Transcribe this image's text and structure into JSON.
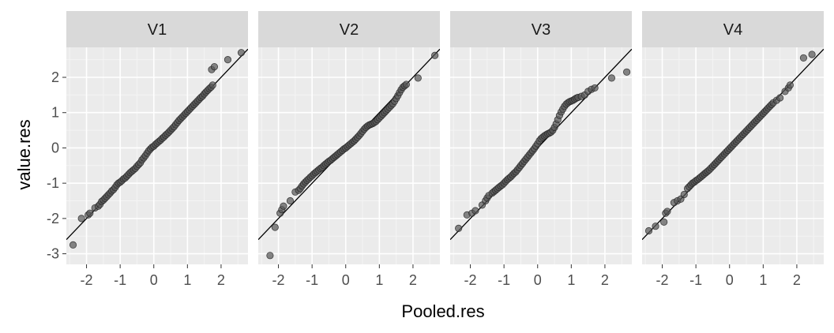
{
  "chart_data": {
    "type": "scatter",
    "subtype": "faceted-qq-plot",
    "xlabel": "Pooled.res",
    "ylabel": "value.res",
    "xlim": [
      -2.6,
      2.8
    ],
    "ylim": [
      -3.3,
      2.85
    ],
    "x_ticks": [
      -2,
      -1,
      0,
      1,
      2
    ],
    "y_ticks": [
      -3,
      -2,
      -1,
      0,
      1,
      2
    ],
    "x_tick_labels": [
      "-2",
      "-1",
      "0",
      "1",
      "2"
    ],
    "y_tick_labels": [
      "-3",
      "-2",
      "-1",
      "0",
      "1",
      "2"
    ],
    "grid": true,
    "shared_axes": true,
    "reference_line": {
      "slope": 1,
      "intercept": 0
    },
    "colors": {
      "panel_background": "#ebebeb",
      "strip_background": "#d9d9d9",
      "grid_major": "#ffffff",
      "grid_minor": "#f4f4f4",
      "point_fill": "#555555",
      "point_stroke": "#222222",
      "reference_line": "#000000"
    },
    "facets": [
      {
        "label": "V1",
        "points": [
          [
            -2.4,
            -2.75
          ],
          [
            -2.15,
            -2.0
          ],
          [
            -1.95,
            -1.9
          ],
          [
            -1.9,
            -1.85
          ],
          [
            -1.75,
            -1.7
          ],
          [
            -1.65,
            -1.65
          ],
          [
            -1.6,
            -1.6
          ],
          [
            -1.55,
            -1.52
          ],
          [
            -1.5,
            -1.48
          ],
          [
            -1.45,
            -1.43
          ],
          [
            -1.4,
            -1.38
          ],
          [
            -1.35,
            -1.33
          ],
          [
            -1.3,
            -1.28
          ],
          [
            -1.25,
            -1.22
          ],
          [
            -1.2,
            -1.18
          ],
          [
            -1.15,
            -1.12
          ],
          [
            -1.1,
            -1.05
          ],
          [
            -1.05,
            -1.0
          ],
          [
            -1.0,
            -0.97
          ],
          [
            -0.95,
            -0.93
          ],
          [
            -0.9,
            -0.88
          ],
          [
            -0.85,
            -0.85
          ],
          [
            -0.8,
            -0.8
          ],
          [
            -0.75,
            -0.75
          ],
          [
            -0.7,
            -0.7
          ],
          [
            -0.65,
            -0.66
          ],
          [
            -0.6,
            -0.62
          ],
          [
            -0.55,
            -0.58
          ],
          [
            -0.5,
            -0.52
          ],
          [
            -0.45,
            -0.47
          ],
          [
            -0.4,
            -0.42
          ],
          [
            -0.35,
            -0.34
          ],
          [
            -0.3,
            -0.28
          ],
          [
            -0.25,
            -0.22
          ],
          [
            -0.2,
            -0.15
          ],
          [
            -0.15,
            -0.08
          ],
          [
            -0.1,
            -0.03
          ],
          [
            -0.05,
            0.02
          ],
          [
            0.0,
            0.05
          ],
          [
            0.05,
            0.1
          ],
          [
            0.1,
            0.14
          ],
          [
            0.15,
            0.18
          ],
          [
            0.2,
            0.22
          ],
          [
            0.25,
            0.27
          ],
          [
            0.3,
            0.31
          ],
          [
            0.35,
            0.36
          ],
          [
            0.4,
            0.4
          ],
          [
            0.45,
            0.45
          ],
          [
            0.5,
            0.5
          ],
          [
            0.55,
            0.55
          ],
          [
            0.6,
            0.6
          ],
          [
            0.65,
            0.66
          ],
          [
            0.7,
            0.72
          ],
          [
            0.75,
            0.78
          ],
          [
            0.8,
            0.83
          ],
          [
            0.85,
            0.88
          ],
          [
            0.9,
            0.93
          ],
          [
            0.95,
            0.98
          ],
          [
            1.0,
            1.03
          ],
          [
            1.05,
            1.08
          ],
          [
            1.1,
            1.13
          ],
          [
            1.15,
            1.18
          ],
          [
            1.2,
            1.23
          ],
          [
            1.25,
            1.28
          ],
          [
            1.3,
            1.33
          ],
          [
            1.35,
            1.38
          ],
          [
            1.4,
            1.43
          ],
          [
            1.45,
            1.47
          ],
          [
            1.5,
            1.53
          ],
          [
            1.55,
            1.58
          ],
          [
            1.6,
            1.63
          ],
          [
            1.65,
            1.68
          ],
          [
            1.7,
            1.72
          ],
          [
            1.75,
            1.78
          ],
          [
            1.72,
            2.22
          ],
          [
            1.8,
            2.3
          ],
          [
            2.2,
            2.5
          ],
          [
            2.6,
            2.7
          ]
        ]
      },
      {
        "label": "V2",
        "points": [
          [
            -2.25,
            -3.05
          ],
          [
            -2.1,
            -2.25
          ],
          [
            -1.95,
            -1.85
          ],
          [
            -1.9,
            -1.75
          ],
          [
            -1.85,
            -1.65
          ],
          [
            -1.65,
            -1.5
          ],
          [
            -1.5,
            -1.25
          ],
          [
            -1.4,
            -1.2
          ],
          [
            -1.35,
            -1.15
          ],
          [
            -1.3,
            -1.08
          ],
          [
            -1.25,
            -1.02
          ],
          [
            -1.2,
            -0.97
          ],
          [
            -1.15,
            -0.92
          ],
          [
            -1.1,
            -0.88
          ],
          [
            -1.05,
            -0.83
          ],
          [
            -1.0,
            -0.79
          ],
          [
            -0.95,
            -0.74
          ],
          [
            -0.9,
            -0.7
          ],
          [
            -0.85,
            -0.66
          ],
          [
            -0.8,
            -0.62
          ],
          [
            -0.75,
            -0.58
          ],
          [
            -0.7,
            -0.55
          ],
          [
            -0.65,
            -0.5
          ],
          [
            -0.6,
            -0.46
          ],
          [
            -0.55,
            -0.42
          ],
          [
            -0.5,
            -0.38
          ],
          [
            -0.45,
            -0.35
          ],
          [
            -0.4,
            -0.31
          ],
          [
            -0.35,
            -0.27
          ],
          [
            -0.3,
            -0.23
          ],
          [
            -0.25,
            -0.19
          ],
          [
            -0.2,
            -0.15
          ],
          [
            -0.15,
            -0.11
          ],
          [
            -0.1,
            -0.07
          ],
          [
            -0.05,
            -0.03
          ],
          [
            0.0,
            0.0
          ],
          [
            0.05,
            0.04
          ],
          [
            0.1,
            0.08
          ],
          [
            0.15,
            0.12
          ],
          [
            0.2,
            0.16
          ],
          [
            0.25,
            0.2
          ],
          [
            0.3,
            0.25
          ],
          [
            0.35,
            0.3
          ],
          [
            0.4,
            0.35
          ],
          [
            0.45,
            0.41
          ],
          [
            0.5,
            0.47
          ],
          [
            0.55,
            0.53
          ],
          [
            0.6,
            0.58
          ],
          [
            0.65,
            0.62
          ],
          [
            0.7,
            0.65
          ],
          [
            0.75,
            0.67
          ],
          [
            0.8,
            0.69
          ],
          [
            0.85,
            0.72
          ],
          [
            0.9,
            0.75
          ],
          [
            0.95,
            0.8
          ],
          [
            1.0,
            0.85
          ],
          [
            1.05,
            0.9
          ],
          [
            1.1,
            0.95
          ],
          [
            1.15,
            1.0
          ],
          [
            1.2,
            1.05
          ],
          [
            1.25,
            1.1
          ],
          [
            1.3,
            1.15
          ],
          [
            1.35,
            1.2
          ],
          [
            1.4,
            1.25
          ],
          [
            1.45,
            1.32
          ],
          [
            1.5,
            1.4
          ],
          [
            1.55,
            1.48
          ],
          [
            1.6,
            1.57
          ],
          [
            1.65,
            1.65
          ],
          [
            1.7,
            1.72
          ],
          [
            1.75,
            1.76
          ],
          [
            1.8,
            1.8
          ],
          [
            2.15,
            1.98
          ],
          [
            2.65,
            2.62
          ]
        ]
      },
      {
        "label": "V3",
        "points": [
          [
            -2.35,
            -2.28
          ],
          [
            -2.1,
            -1.9
          ],
          [
            -1.95,
            -1.85
          ],
          [
            -1.85,
            -1.78
          ],
          [
            -1.65,
            -1.62
          ],
          [
            -1.55,
            -1.5
          ],
          [
            -1.5,
            -1.42
          ],
          [
            -1.45,
            -1.35
          ],
          [
            -1.35,
            -1.28
          ],
          [
            -1.3,
            -1.24
          ],
          [
            -1.25,
            -1.2
          ],
          [
            -1.2,
            -1.16
          ],
          [
            -1.15,
            -1.12
          ],
          [
            -1.1,
            -1.08
          ],
          [
            -1.05,
            -1.05
          ],
          [
            -1.0,
            -1.0
          ],
          [
            -0.95,
            -0.95
          ],
          [
            -0.9,
            -0.9
          ],
          [
            -0.85,
            -0.86
          ],
          [
            -0.8,
            -0.82
          ],
          [
            -0.75,
            -0.77
          ],
          [
            -0.7,
            -0.72
          ],
          [
            -0.65,
            -0.68
          ],
          [
            -0.6,
            -0.62
          ],
          [
            -0.55,
            -0.56
          ],
          [
            -0.5,
            -0.5
          ],
          [
            -0.45,
            -0.44
          ],
          [
            -0.4,
            -0.38
          ],
          [
            -0.35,
            -0.32
          ],
          [
            -0.3,
            -0.26
          ],
          [
            -0.25,
            -0.2
          ],
          [
            -0.2,
            -0.14
          ],
          [
            -0.15,
            -0.08
          ],
          [
            -0.1,
            -0.02
          ],
          [
            -0.05,
            0.05
          ],
          [
            0.0,
            0.12
          ],
          [
            0.05,
            0.2
          ],
          [
            0.1,
            0.26
          ],
          [
            0.15,
            0.3
          ],
          [
            0.2,
            0.34
          ],
          [
            0.25,
            0.37
          ],
          [
            0.3,
            0.4
          ],
          [
            0.35,
            0.42
          ],
          [
            0.4,
            0.45
          ],
          [
            0.45,
            0.5
          ],
          [
            0.5,
            0.58
          ],
          [
            0.55,
            0.68
          ],
          [
            0.6,
            0.8
          ],
          [
            0.65,
            0.92
          ],
          [
            0.7,
            1.02
          ],
          [
            0.75,
            1.1
          ],
          [
            0.8,
            1.18
          ],
          [
            0.85,
            1.24
          ],
          [
            0.9,
            1.28
          ],
          [
            0.95,
            1.31
          ],
          [
            1.0,
            1.33
          ],
          [
            1.05,
            1.35
          ],
          [
            1.1,
            1.38
          ],
          [
            1.15,
            1.41
          ],
          [
            1.2,
            1.43
          ],
          [
            1.3,
            1.46
          ],
          [
            1.4,
            1.5
          ],
          [
            1.5,
            1.6
          ],
          [
            1.6,
            1.66
          ],
          [
            1.7,
            1.7
          ],
          [
            2.2,
            1.98
          ],
          [
            2.65,
            2.15
          ]
        ]
      },
      {
        "label": "V4",
        "points": [
          [
            -2.4,
            -2.35
          ],
          [
            -2.2,
            -2.22
          ],
          [
            -1.95,
            -2.1
          ],
          [
            -1.9,
            -1.85
          ],
          [
            -1.85,
            -1.8
          ],
          [
            -1.65,
            -1.55
          ],
          [
            -1.55,
            -1.5
          ],
          [
            -1.45,
            -1.45
          ],
          [
            -1.35,
            -1.32
          ],
          [
            -1.25,
            -1.15
          ],
          [
            -1.2,
            -1.1
          ],
          [
            -1.15,
            -1.05
          ],
          [
            -1.1,
            -1.0
          ],
          [
            -1.05,
            -0.97
          ],
          [
            -1.0,
            -0.93
          ],
          [
            -0.95,
            -0.9
          ],
          [
            -0.9,
            -0.86
          ],
          [
            -0.85,
            -0.82
          ],
          [
            -0.8,
            -0.78
          ],
          [
            -0.75,
            -0.74
          ],
          [
            -0.7,
            -0.7
          ],
          [
            -0.65,
            -0.66
          ],
          [
            -0.6,
            -0.62
          ],
          [
            -0.55,
            -0.57
          ],
          [
            -0.5,
            -0.52
          ],
          [
            -0.45,
            -0.47
          ],
          [
            -0.4,
            -0.42
          ],
          [
            -0.35,
            -0.37
          ],
          [
            -0.3,
            -0.32
          ],
          [
            -0.25,
            -0.27
          ],
          [
            -0.2,
            -0.22
          ],
          [
            -0.15,
            -0.17
          ],
          [
            -0.1,
            -0.12
          ],
          [
            -0.05,
            -0.07
          ],
          [
            0.0,
            -0.02
          ],
          [
            0.05,
            0.03
          ],
          [
            0.1,
            0.08
          ],
          [
            0.15,
            0.13
          ],
          [
            0.2,
            0.18
          ],
          [
            0.25,
            0.23
          ],
          [
            0.3,
            0.28
          ],
          [
            0.35,
            0.33
          ],
          [
            0.4,
            0.38
          ],
          [
            0.45,
            0.43
          ],
          [
            0.5,
            0.48
          ],
          [
            0.55,
            0.53
          ],
          [
            0.6,
            0.58
          ],
          [
            0.65,
            0.63
          ],
          [
            0.7,
            0.68
          ],
          [
            0.75,
            0.73
          ],
          [
            0.8,
            0.78
          ],
          [
            0.85,
            0.83
          ],
          [
            0.9,
            0.88
          ],
          [
            0.95,
            0.93
          ],
          [
            1.0,
            0.98
          ],
          [
            1.05,
            1.03
          ],
          [
            1.1,
            1.08
          ],
          [
            1.15,
            1.13
          ],
          [
            1.2,
            1.18
          ],
          [
            1.25,
            1.23
          ],
          [
            1.3,
            1.28
          ],
          [
            1.4,
            1.35
          ],
          [
            1.5,
            1.42
          ],
          [
            1.65,
            1.6
          ],
          [
            1.75,
            1.7
          ],
          [
            1.8,
            1.78
          ],
          [
            2.2,
            2.55
          ],
          [
            2.45,
            2.65
          ]
        ]
      }
    ]
  }
}
